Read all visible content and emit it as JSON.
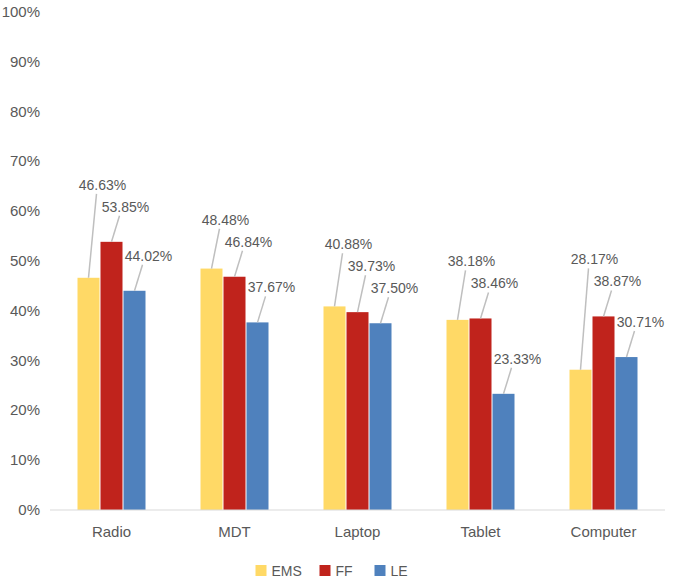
{
  "chart_data": {
    "type": "bar",
    "categories": [
      "Radio",
      "MDT",
      "Laptop",
      "Tablet",
      "Computer"
    ],
    "series": [
      {
        "name": "EMS",
        "color": "#FFD966",
        "values": [
          46.63,
          48.48,
          40.88,
          38.18,
          28.17
        ],
        "value_labels": [
          "46.63%",
          "48.48%",
          "40.88%",
          "38.18%",
          "28.17%"
        ]
      },
      {
        "name": "FF",
        "color": "#C0231C",
        "values": [
          53.85,
          46.84,
          39.73,
          38.46,
          38.87
        ],
        "value_labels": [
          "53.85%",
          "46.84%",
          "39.73%",
          "38.46%",
          "38.87%"
        ]
      },
      {
        "name": "LE",
        "color": "#4F81BD",
        "values": [
          44.02,
          37.67,
          37.5,
          23.33,
          30.71
        ],
        "value_labels": [
          "44.02%",
          "37.67%",
          "37.50%",
          "23.33%",
          "30.71%"
        ]
      }
    ],
    "ylim": [
      0,
      100
    ],
    "yticks": [
      {
        "value": 0,
        "label": "0%"
      },
      {
        "value": 10,
        "label": "10%"
      },
      {
        "value": 20,
        "label": "20%"
      },
      {
        "value": 30,
        "label": "30%"
      },
      {
        "value": 40,
        "label": "40%"
      },
      {
        "value": 50,
        "label": "50%"
      },
      {
        "value": 60,
        "label": "60%"
      },
      {
        "value": 70,
        "label": "70%"
      },
      {
        "value": 80,
        "label": "80%"
      },
      {
        "value": 90,
        "label": "90%"
      },
      {
        "value": 100,
        "label": "100%"
      }
    ],
    "grid": false,
    "data_labels": true,
    "legend": "bottom"
  }
}
